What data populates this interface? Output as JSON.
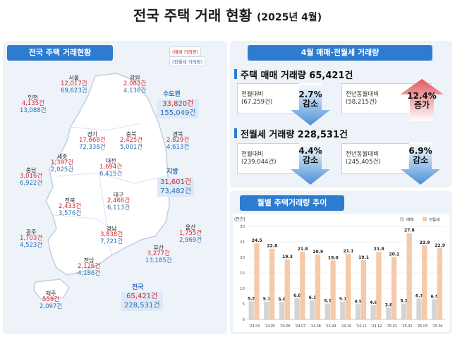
{
  "title": {
    "main": "전국 주택 거래 현황",
    "sub": "(2025년 4월)"
  },
  "left": {
    "tab": "전국 주택 거래현황",
    "legend_sale": "(매매 거래량)",
    "legend_rent": "(전월세 거래량)",
    "regions": [
      {
        "name": "인천",
        "sale": "4,135건",
        "rent": "13,088건"
      },
      {
        "name": "서울",
        "sale": "12,017건",
        "rent": "69,623건"
      },
      {
        "name": "강원",
        "sale": "2,083건",
        "rent": "4,136건"
      },
      {
        "name": "경기",
        "sale": "17,668건",
        "rent": "72,338건"
      },
      {
        "name": "충북",
        "sale": "2,425건",
        "rent": "5,001건"
      },
      {
        "name": "경북",
        "sale": "2,829건",
        "rent": "4,613건"
      },
      {
        "name": "세종",
        "sale": "1,397건",
        "rent": "2,025건"
      },
      {
        "name": "대전",
        "sale": "1,694건",
        "rent": "6,415건"
      },
      {
        "name": "충남",
        "sale": "3,016건",
        "rent": "6,922건"
      },
      {
        "name": "대구",
        "sale": "2,466건",
        "rent": "6,113건"
      },
      {
        "name": "전북",
        "sale": "2,433건",
        "rent": "3,576건"
      },
      {
        "name": "울산",
        "sale": "1,755건",
        "rent": "2,969건"
      },
      {
        "name": "경남",
        "sale": "3,838건",
        "rent": "7,721건"
      },
      {
        "name": "광주",
        "sale": "1,703건",
        "rent": "4,523건"
      },
      {
        "name": "부산",
        "sale": "3,277건",
        "rent": "13,185건"
      },
      {
        "name": "전남",
        "sale": "2,126건",
        "rent": "4,186건"
      },
      {
        "name": "제주",
        "sale": "559건",
        "rent": "2,097건"
      }
    ],
    "capital": {
      "name": "수도권",
      "sale": "33,820건",
      "rent": "155,049건"
    },
    "local": {
      "name": "지방",
      "sale": "31,601건",
      "rent": "73,482건"
    },
    "national": {
      "name": "전국",
      "sale": "65,421건",
      "rent": "228,531건"
    }
  },
  "right": {
    "tab": "4월 매매·전월세 거래량",
    "sale_title": "주택 매매 거래량 65,421건",
    "sale_mom_label": "전월대비",
    "sale_mom_base": "(67,259건)",
    "sale_mom_pct": "2.7%",
    "sale_mom_dir": "감소",
    "sale_yoy_label": "전년동월대비",
    "sale_yoy_base": "(58,215건)",
    "sale_yoy_pct": "12.4%",
    "sale_yoy_dir": "증가",
    "rent_title": "전월세 거래량 228,531건",
    "rent_mom_label": "전월대비",
    "rent_mom_base": "(239,044건)",
    "rent_mom_pct": "4.4%",
    "rent_mom_dir": "감소",
    "rent_yoy_label": "전년동월대비",
    "rent_yoy_base": "(245,405건)",
    "rent_yoy_pct": "6.9%",
    "rent_yoy_dir": "감소",
    "colors": {
      "up": "#e05a5f",
      "down": "#2e7ccf"
    }
  },
  "chart_panel": {
    "tab": "월별 주택거래량 추이"
  },
  "chart_data": {
    "type": "bar",
    "title": "",
    "ylabel": "(만건)",
    "ylim": [
      0,
      30
    ],
    "yticks": [
      0,
      5,
      10,
      15,
      20,
      25,
      30
    ],
    "categories": [
      "'24.04",
      "'24.05",
      "'24.06",
      "'24.07",
      "'24.08",
      "'24.09",
      "'24.10",
      "'24.11",
      "'24.12",
      "'25.01",
      "'25.02",
      "'25.03",
      "'25.04"
    ],
    "series": [
      {
        "name": "매매",
        "color": "#d4d4d4",
        "values": [
          5.8,
          5.7,
          5.6,
          6.8,
          6.1,
          5.1,
          5.7,
          4.9,
          4.6,
          3.8,
          5.1,
          6.7,
          6.5
        ]
      },
      {
        "name": "전월세",
        "color": "#f5c9a9",
        "values": [
          24.5,
          22.8,
          19.3,
          21.8,
          20.9,
          19.0,
          21.1,
          19.1,
          21.8,
          20.1,
          27.8,
          23.9,
          22.9
        ]
      }
    ],
    "grid": true,
    "legend_position": "top-right"
  }
}
